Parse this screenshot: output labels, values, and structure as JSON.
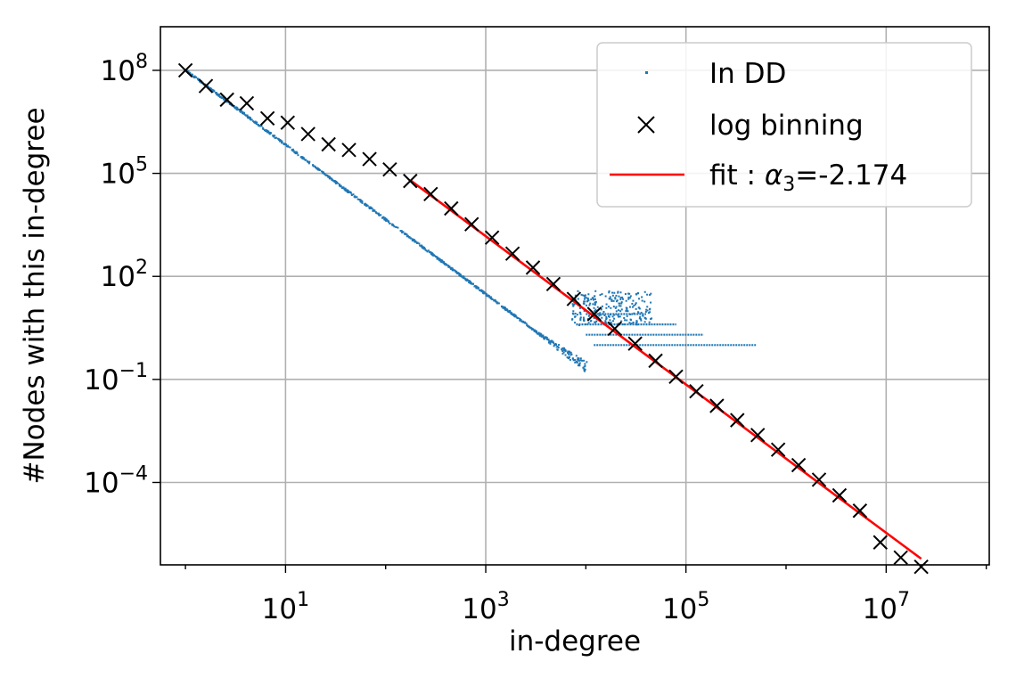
{
  "chart_data": {
    "type": "scatter",
    "title": "",
    "xlabel": "in-degree",
    "ylabel": "#Nodes with this in-degree",
    "xscale": "log",
    "yscale": "log",
    "xlim_log10": [
      -0.25,
      8.03
    ],
    "ylim_log10": [
      -6.4,
      9.27
    ],
    "grid": true,
    "legend_position": "top-right",
    "x_ticks": [
      {
        "exp": 1,
        "base": "10",
        "sup": "1"
      },
      {
        "exp": 3,
        "base": "10",
        "sup": "3"
      },
      {
        "exp": 5,
        "base": "10",
        "sup": "5"
      },
      {
        "exp": 7,
        "base": "10",
        "sup": "7"
      }
    ],
    "y_ticks": [
      {
        "exp": 8,
        "base": "10",
        "sup": "8"
      },
      {
        "exp": 5,
        "base": "10",
        "sup": "5"
      },
      {
        "exp": 2,
        "base": "10",
        "sup": "2"
      },
      {
        "exp": -1,
        "base": "10",
        "sup": "−1"
      },
      {
        "exp": -4,
        "base": "10",
        "sup": "−4"
      }
    ],
    "legend": [
      {
        "label": "In DD",
        "marker": "dot",
        "color": "#1f77b4"
      },
      {
        "label": "log binning",
        "marker": "x",
        "color": "#000000"
      },
      {
        "label_prefix": "fit : ",
        "label_symbol": "α",
        "label_sub": "3",
        "label_suffix": "=-2.174",
        "marker": "line",
        "color": "#ff0000"
      }
    ],
    "series": [
      {
        "name": "log binning",
        "marker": "x",
        "color": "#000000",
        "x": [
          1,
          1.6,
          2.6,
          4.1,
          6.6,
          10.5,
          16.8,
          26.9,
          43,
          69,
          110,
          176,
          282,
          452,
          723,
          1157,
          1851,
          2962,
          4740,
          7584,
          12135,
          19417,
          31068,
          49710,
          79536,
          127258,
          203613,
          325781,
          521250,
          834000,
          1334400,
          2135041,
          3416065,
          5465705,
          8745128,
          13992205,
          22387528
        ],
        "y": [
          100000000,
          35000000,
          14000000,
          11000000,
          4000000,
          3000000,
          1400000,
          700000,
          480000,
          260000,
          130000,
          60000,
          25000,
          9500,
          3300,
          1350,
          460,
          180,
          60,
          22,
          8,
          3,
          1.1,
          0.35,
          0.12,
          0.045,
          0.017,
          0.0065,
          0.0024,
          0.0009,
          0.00032,
          0.00012,
          4.2e-05,
          1.5e-05,
          1.8e-06,
          6.5e-07,
          3.5e-07
        ]
      },
      {
        "name": "fit",
        "type": "line",
        "color": "#ff0000",
        "x": [
          176,
          22387528
        ],
        "y": [
          63000,
          6e-07
        ]
      },
      {
        "name": "In DD",
        "marker": "dot",
        "color": "#1f77b4",
        "x_range_main": [
          1,
          10000
        ],
        "power_law_exponent": -2.174,
        "tail_levels": [
          {
            "y": 8,
            "x_from": 10000,
            "x_to": 40000
          },
          {
            "y": 4,
            "x_from": 8000,
            "x_to": 80000
          },
          {
            "y": 2,
            "x_from": 10000,
            "x_to": 150000
          },
          {
            "y": 1,
            "x_from": 12000,
            "x_to": 500000
          }
        ]
      }
    ]
  }
}
